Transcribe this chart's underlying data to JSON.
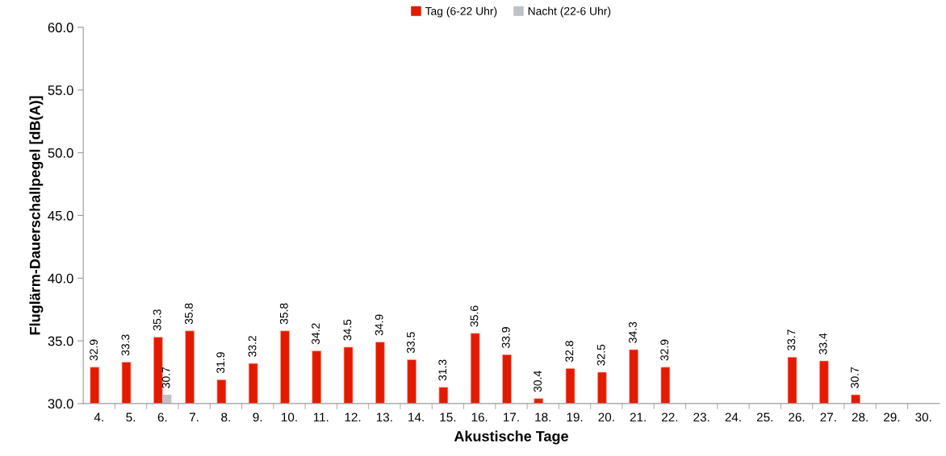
{
  "chart_data": {
    "type": "bar",
    "xlabel": "Akustische Tage",
    "ylabel": "Fluglärm-Dauerschallpegel [dB(A)]",
    "categories": [
      "4.",
      "5.",
      "6.",
      "7.",
      "8.",
      "9.",
      "10.",
      "11.",
      "12.",
      "13.",
      "14.",
      "15.",
      "16.",
      "17.",
      "18.",
      "19.",
      "20.",
      "21.",
      "22.",
      "23.",
      "24.",
      "25.",
      "26.",
      "27.",
      "28.",
      "29.",
      "30."
    ],
    "series": [
      {
        "name": "Tag (6-22 Uhr)",
        "color": "#e41a00",
        "values": [
          32.9,
          33.3,
          35.3,
          35.8,
          31.9,
          33.2,
          35.8,
          34.2,
          34.5,
          34.9,
          33.5,
          31.3,
          35.6,
          33.9,
          30.4,
          32.8,
          32.5,
          34.3,
          32.9,
          null,
          null,
          null,
          33.7,
          33.4,
          30.7,
          null,
          null
        ]
      },
      {
        "name": "Nacht (22-6 Uhr)",
        "color": "#bfc2c4",
        "values": [
          null,
          null,
          30.7,
          null,
          null,
          null,
          null,
          null,
          null,
          null,
          null,
          null,
          null,
          null,
          null,
          null,
          null,
          null,
          null,
          null,
          null,
          null,
          null,
          null,
          null,
          null,
          null
        ]
      }
    ],
    "ylim": [
      30,
      60
    ],
    "yticks": [
      {
        "value": 30,
        "label": "30.0"
      },
      {
        "value": 35,
        "label": "35.0"
      },
      {
        "value": 40,
        "label": "40.0"
      },
      {
        "value": 45,
        "label": "45.0"
      },
      {
        "value": 50,
        "label": "50.0"
      },
      {
        "value": 55,
        "label": "55.0"
      },
      {
        "value": 60,
        "label": "60.0"
      }
    ],
    "data_labels": true,
    "legend": "top",
    "grid": false
  }
}
